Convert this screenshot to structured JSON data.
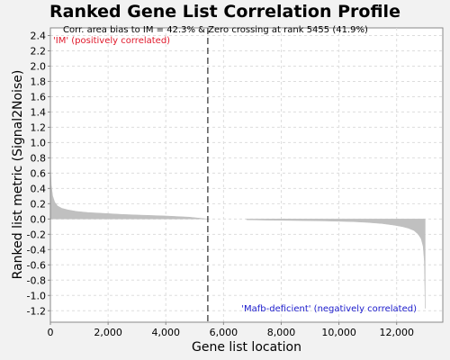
{
  "chart_data": {
    "type": "area",
    "title": "Ranked Gene List Correlation Profile",
    "xlabel": "Gene list location",
    "ylabel": "Ranked list metric (Signal2Noise)",
    "xlim": [
      0,
      13600
    ],
    "ylim": [
      -1.35,
      2.5
    ],
    "x_ticks": [
      0,
      2000,
      4000,
      6000,
      8000,
      10000,
      12000
    ],
    "x_tick_labels": [
      "0",
      "2,000",
      "4,000",
      "6,000",
      "8,000",
      "10,000",
      "12,000"
    ],
    "y_ticks": [
      2.4,
      2.2,
      2.0,
      1.8,
      1.6,
      1.4,
      1.2,
      1.0,
      0.8,
      0.6,
      0.4,
      0.2,
      0.0,
      -0.2,
      -0.4,
      -0.6,
      -0.8,
      -1.0,
      -1.2
    ],
    "y_tick_labels": [
      "2.4",
      "2.2",
      "2.0",
      "1.8",
      "1.6",
      "1.4",
      "1.2",
      "1.0",
      "0.8",
      "0.6",
      "0.4",
      "0.2",
      "0.0",
      "-0.2",
      "-0.4",
      "-0.6",
      "-0.8",
      "-1.0",
      "-1.2"
    ],
    "grid": true,
    "grid_color": "#dddddd",
    "fill_color": "#c0c0c0",
    "zero_crossing_rank": 5455,
    "zero_crossing_line_color": "#555555",
    "annotations": {
      "summary": "Corr. area bias to IM = 42.3% & Zero crossing at rank 5455 (41.9%)",
      "positive_label": "'IM' (positively correlated)",
      "negative_label": "'Mafb-deficient' (negatively correlated)"
    },
    "colors": {
      "positive_label": "#e0182a",
      "negative_label": "#1a1acc"
    },
    "series": [
      {
        "x": [
          0,
          30,
          80,
          150,
          250,
          400,
          600,
          900,
          1300,
          1800,
          2500,
          3200,
          4000,
          4800,
          5455,
          6800,
          7500,
          8500,
          9500,
          10500,
          11000,
          11500,
          11900,
          12200,
          12400,
          12600,
          12750,
          12850,
          12920,
          12960,
          12990
        ],
        "y": [
          0.72,
          0.44,
          0.3,
          0.22,
          0.17,
          0.14,
          0.12,
          0.1,
          0.085,
          0.075,
          0.06,
          0.05,
          0.04,
          0.025,
          0.0,
          -0.01,
          -0.015,
          -0.02,
          -0.025,
          -0.035,
          -0.045,
          -0.06,
          -0.08,
          -0.1,
          -0.12,
          -0.15,
          -0.2,
          -0.26,
          -0.36,
          -0.55,
          -1.17
        ]
      }
    ]
  }
}
